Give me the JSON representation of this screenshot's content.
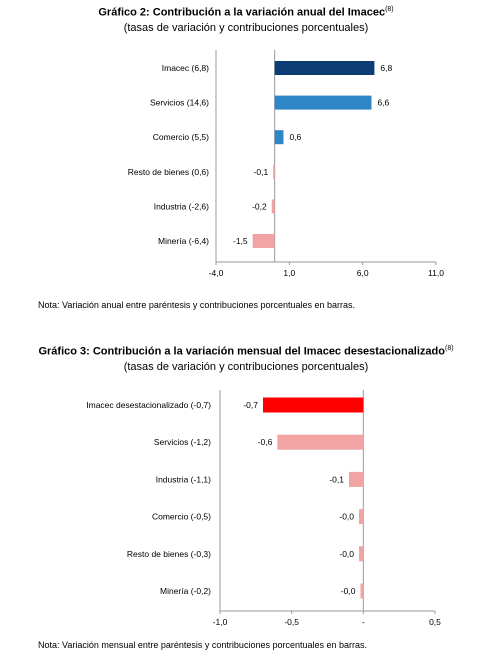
{
  "chart_data": [
    {
      "type": "bar",
      "orientation": "horizontal",
      "title": "Gráfico 2: Contribución a la variación anual del Imacec",
      "title_sup": "(8)",
      "subtitle": "(tasas de variación y contribuciones porcentuales)",
      "categories": [
        "Imacec (6,8)",
        "Servicios (14,6)",
        "Comercio (5,5)",
        "Resto de bienes (0,6)",
        "Industria (-2,6)",
        "Minería (-6,4)"
      ],
      "values": [
        6.8,
        6.6,
        0.6,
        -0.1,
        -0.2,
        -1.5
      ],
      "value_labels": [
        "6,8",
        "6,6",
        "0,6",
        "-0,1",
        "-0,2",
        "-1,5"
      ],
      "bar_colors": [
        "#0b3d73",
        "#2f86c6",
        "#2f86c6",
        "#f2a3a3",
        "#f2a3a3",
        "#f2a3a3"
      ],
      "xlim": [
        -4.0,
        11.0
      ],
      "xticks": [
        -4.0,
        1.0,
        6.0,
        11.0
      ],
      "xtick_labels": [
        "-4,0",
        "1,0",
        "6,0",
        "11,0"
      ],
      "grid": false,
      "note": "Nota: Variación anual entre paréntesis y contribuciones porcentuales en barras."
    },
    {
      "type": "bar",
      "orientation": "horizontal",
      "title": "Gráfico 3: Contribución a la variación mensual del Imacec desestacionalizado",
      "title_sup": "(8)",
      "subtitle": "(tasas de variación y contribuciones porcentuales)",
      "categories": [
        "Imacec desestacionalizado (-0,7)",
        "Servicios (-1,2)",
        "Industria (-1,1)",
        "Comercio (-0,5)",
        "Resto de bienes (-0,3)",
        "Minería (-0,2)"
      ],
      "values": [
        -0.7,
        -0.6,
        -0.1,
        -0.03,
        -0.03,
        -0.02
      ],
      "value_labels": [
        "-0,7",
        "-0,6",
        "-0,1",
        "-0,0",
        "-0,0",
        "-0,0"
      ],
      "bar_colors": [
        "#ff0000",
        "#f2a3a3",
        "#f2a3a3",
        "#f2a3a3",
        "#f2a3a3",
        "#f2a3a3"
      ],
      "xlim": [
        -1.0,
        0.5
      ],
      "xticks": [
        -1.0,
        -0.5,
        0.0,
        0.5
      ],
      "xtick_labels": [
        "-1,0",
        "-0,5",
        "-",
        "0,5"
      ],
      "grid": false,
      "note": "Nota: Variación mensual entre paréntesis y contribuciones porcentuales en barras."
    }
  ]
}
